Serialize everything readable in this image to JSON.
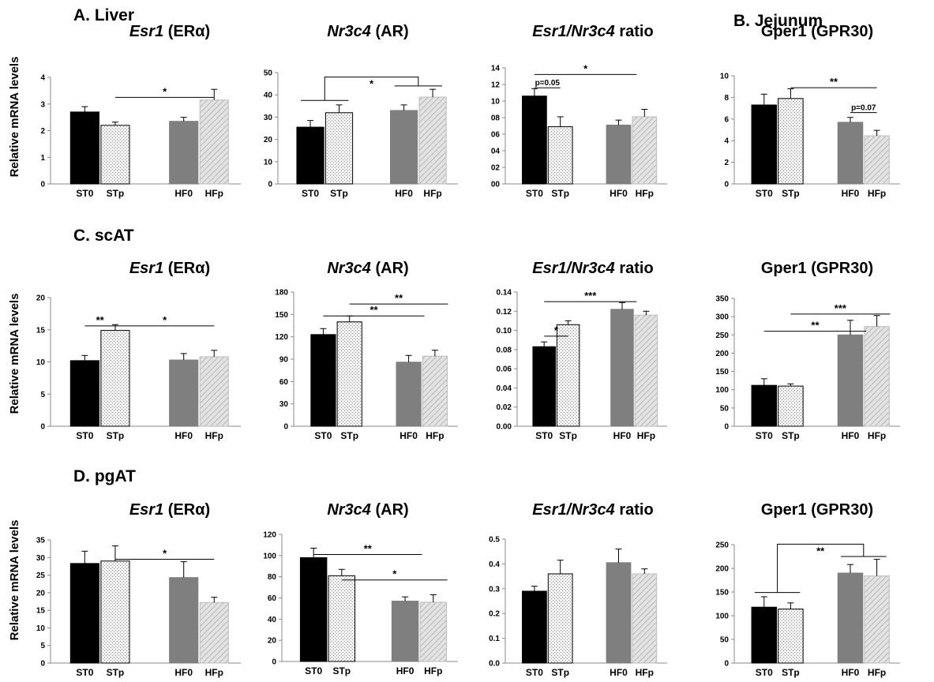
{
  "figure": {
    "ylabel": "Relative mRNA levels",
    "sections": [
      {
        "key": "A",
        "label": "A. Liver"
      },
      {
        "key": "B",
        "label": "B. Jejunum"
      },
      {
        "key": "C",
        "label": "C. scAT"
      },
      {
        "key": "D",
        "label": "D. pgAT"
      }
    ],
    "group_colors": {
      "ST0": "#000000",
      "STp": "#e6e6e6",
      "HF0": "#7f7f7f",
      "HFp": "#d2d2d2"
    }
  },
  "chart_data": [
    {
      "id": "A1",
      "type": "bar",
      "title_italic": "Esr1",
      "title_rest": " (ERα)",
      "categories": [
        "ST0",
        "STp",
        "HF0",
        "HFp"
      ],
      "values": [
        2.7,
        2.2,
        2.35,
        3.15
      ],
      "errors": [
        0.2,
        0.12,
        0.15,
        0.4
      ],
      "ylim": [
        0,
        4
      ],
      "yticks": [
        "0",
        "1",
        "2",
        "3",
        "4"
      ],
      "annotations": [
        {
          "type": "line",
          "from": 1,
          "to": 3,
          "y": 3.25,
          "text": "*"
        }
      ]
    },
    {
      "id": "A2",
      "type": "bar",
      "title_italic": "Nr3c4",
      "title_rest": " (AR)",
      "categories": [
        "ST0",
        "STp",
        "HF0",
        "HFp"
      ],
      "values": [
        25.5,
        32,
        33,
        39
      ],
      "errors": [
        3,
        3.5,
        2.5,
        3.5
      ],
      "ylim": [
        0,
        50
      ],
      "yticks": [
        "0",
        "10",
        "20",
        "30",
        "40",
        "50"
      ],
      "annotations": [
        {
          "type": "bracket",
          "from": [
            0,
            1
          ],
          "to": [
            2,
            3
          ],
          "base_y": [
            37.5,
            44
          ],
          "top_y": 48,
          "text": "*"
        }
      ]
    },
    {
      "id": "A3",
      "type": "bar",
      "title_italic": "Esr1/Nr3c4",
      "title_rest": " ratio",
      "categories": [
        "ST0",
        "STp",
        "HF0",
        "HFp"
      ],
      "values": [
        10.6,
        6.9,
        7.1,
        8.1
      ],
      "errors": [
        0.9,
        1.2,
        0.6,
        0.9
      ],
      "ylim": [
        0,
        14
      ],
      "yticks": [
        "00",
        "02",
        "04",
        "06",
        "08",
        "10",
        "12",
        "14"
      ],
      "annotations": [
        {
          "type": "line",
          "from": 0,
          "to": 1,
          "y": 11.6,
          "text": "p=0.05"
        },
        {
          "type": "line",
          "from": 0,
          "to": 2.7,
          "y": 13.2,
          "text": "*"
        }
      ]
    },
    {
      "id": "B1",
      "type": "bar",
      "title_italic": "",
      "title_rest": "Gper1 (GPR30)",
      "categories": [
        "ST0",
        "STp",
        "HF0",
        "HFp"
      ],
      "values": [
        7.3,
        7.9,
        5.7,
        4.45
      ],
      "errors": [
        1,
        0.9,
        0.45,
        0.5
      ],
      "ylim": [
        0,
        10
      ],
      "yticks": [
        "0",
        "2",
        "4",
        "6",
        "8",
        "10"
      ],
      "annotations": [
        {
          "type": "line",
          "from": 1,
          "to": 3,
          "y": 8.9,
          "text": "**"
        },
        {
          "type": "line",
          "from": 2,
          "to": 3,
          "y": 6.6,
          "text": "p=0.07"
        }
      ]
    },
    {
      "id": "C1",
      "type": "bar",
      "title_italic": "Esr1",
      "title_rest": " (ERα)",
      "categories": [
        "ST0",
        "STp",
        "HF0",
        "HFp"
      ],
      "values": [
        10.2,
        14.9,
        10.3,
        10.8
      ],
      "errors": [
        0.8,
        0.9,
        1,
        1
      ],
      "ylim": [
        0,
        20
      ],
      "yticks": [
        "0",
        "5",
        "10",
        "15",
        "20"
      ],
      "annotations": [
        {
          "type": "line",
          "from": 0,
          "to": 1,
          "y": 15.6,
          "text": "**"
        },
        {
          "type": "line",
          "from": 1,
          "to": 3,
          "y": 15.6,
          "text": "*"
        }
      ]
    },
    {
      "id": "C2",
      "type": "bar",
      "title_italic": "Nr3c4",
      "title_rest": " (AR)",
      "categories": [
        "ST0",
        "STp",
        "HF0",
        "HFp"
      ],
      "values": [
        123,
        140,
        86,
        94
      ],
      "errors": [
        8,
        8,
        9,
        8
      ],
      "ylim": [
        0,
        180
      ],
      "yticks": [
        "0",
        "30",
        "60",
        "90",
        "120",
        "150",
        "180"
      ],
      "annotations": [
        {
          "type": "line",
          "from": 0,
          "to": 2.6,
          "y": 148,
          "text": "**"
        },
        {
          "type": "line",
          "from": 1,
          "to": 3.5,
          "y": 164,
          "text": "**"
        }
      ]
    },
    {
      "id": "C3",
      "type": "bar",
      "title_italic": "Esr1/Nr3c4",
      "title_rest": " ratio",
      "categories": [
        "ST0",
        "STp",
        "HF0",
        "HFp"
      ],
      "values": [
        0.083,
        0.106,
        0.122,
        0.116
      ],
      "errors": [
        0.005,
        0.004,
        0.007,
        0.004
      ],
      "ylim": [
        0,
        0.14
      ],
      "yticks": [
        "0.00",
        "0.02",
        "0.04",
        "0.06",
        "0.08",
        "0.10",
        "0.12",
        "0.14"
      ],
      "annotations": [
        {
          "type": "line",
          "from": 0,
          "to": 1,
          "y": 0.094,
          "text": "*"
        },
        {
          "type": "line",
          "from": 0,
          "to": 2.6,
          "y": 0.13,
          "text": "***"
        }
      ]
    },
    {
      "id": "C4",
      "type": "bar",
      "title_italic": "",
      "title_rest": "Gper1 (GPR30)",
      "categories": [
        "ST0",
        "STp",
        "HF0",
        "HFp"
      ],
      "values": [
        112,
        110,
        250,
        273
      ],
      "errors": [
        18,
        6,
        40,
        30
      ],
      "ylim": [
        0,
        350
      ],
      "yticks": [
        "0",
        "50",
        "100",
        "150",
        "200",
        "250",
        "300",
        "350"
      ],
      "annotations": [
        {
          "type": "line",
          "from": 0,
          "to": 2.6,
          "y": 260,
          "text": "**"
        },
        {
          "type": "line",
          "from": 1,
          "to": 3.5,
          "y": 307,
          "text": "***"
        }
      ]
    },
    {
      "id": "D1",
      "type": "bar",
      "title_italic": "Esr1",
      "title_rest": " (ERα)",
      "categories": [
        "ST0",
        "STp",
        "HF0",
        "HFp"
      ],
      "values": [
        28.3,
        29,
        24.3,
        17.2
      ],
      "errors": [
        3.5,
        4.3,
        4.5,
        1.5
      ],
      "ylim": [
        0,
        35
      ],
      "yticks": [
        "0",
        "5",
        "10",
        "15",
        "20",
        "25",
        "30",
        "35"
      ],
      "annotations": [
        {
          "type": "line",
          "from": 1,
          "to": 3,
          "y": 29.5,
          "text": "*"
        }
      ]
    },
    {
      "id": "D2",
      "type": "bar",
      "title_italic": "Nr3c4",
      "title_rest": " (AR)",
      "categories": [
        "ST0",
        "STp",
        "HF0",
        "HFp"
      ],
      "values": [
        98,
        81,
        57,
        56
      ],
      "errors": [
        9,
        6,
        4,
        7
      ],
      "ylim": [
        0,
        120
      ],
      "yticks": [
        "0",
        "20",
        "40",
        "60",
        "80",
        "100",
        "120"
      ],
      "annotations": [
        {
          "type": "line",
          "from": 0,
          "to": 2.6,
          "y": 101,
          "text": "**"
        },
        {
          "type": "line",
          "from": 1,
          "to": 3.5,
          "y": 77,
          "text": "*"
        }
      ]
    },
    {
      "id": "D3",
      "type": "bar",
      "title_italic": "Esr1/Nr3c4",
      "title_rest": " ratio",
      "categories": [
        "ST0",
        "STp",
        "HF0",
        "HFp"
      ],
      "values": [
        0.29,
        0.36,
        0.405,
        0.36
      ],
      "errors": [
        0.02,
        0.055,
        0.055,
        0.02
      ],
      "ylim": [
        0,
        0.5
      ],
      "yticks": [
        "0.0",
        "0.1",
        "0.2",
        "0.3",
        "0.4",
        "0.5"
      ],
      "annotations": []
    },
    {
      "id": "D4",
      "type": "bar",
      "title_italic": "",
      "title_rest": "Gper1 (GPR30)",
      "categories": [
        "ST0",
        "STp",
        "HF0",
        "HFp"
      ],
      "values": [
        118,
        114,
        190,
        184
      ],
      "errors": [
        22,
        13,
        18,
        35
      ],
      "ylim": [
        0,
        250
      ],
      "yticks": [
        "0",
        "50",
        "100",
        "150",
        "200",
        "250"
      ],
      "annotations": [
        {
          "type": "bracket",
          "from": [
            0,
            1
          ],
          "to": [
            2,
            3
          ],
          "base_y": [
            149,
            225
          ],
          "top_y": 251,
          "text": "**"
        }
      ]
    }
  ]
}
